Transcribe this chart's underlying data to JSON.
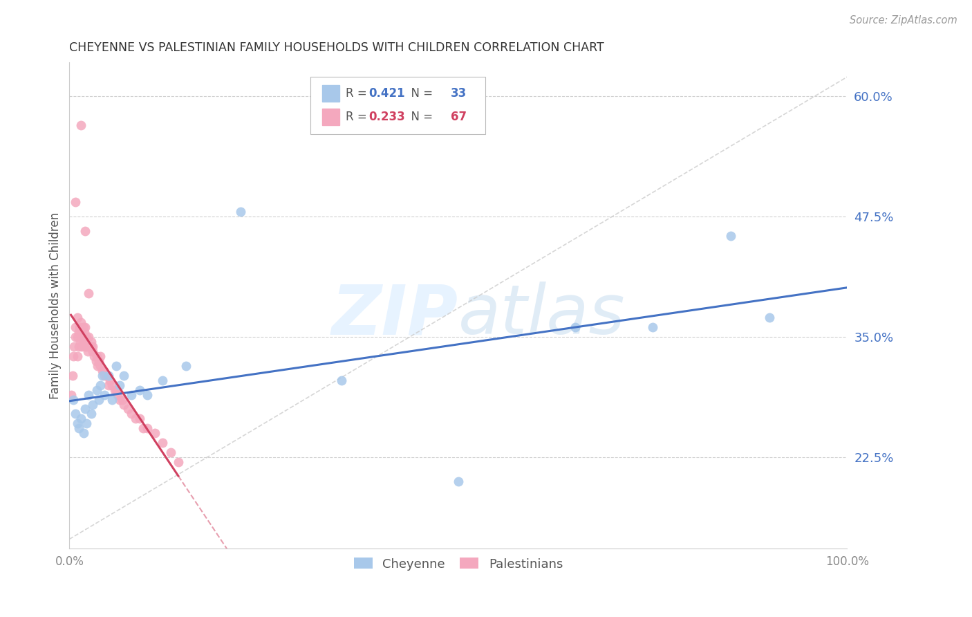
{
  "title": "CHEYENNE VS PALESTINIAN FAMILY HOUSEHOLDS WITH CHILDREN CORRELATION CHART",
  "source": "Source: ZipAtlas.com",
  "ylabel": "Family Households with Children",
  "xlabel": "",
  "legend_label1": "Cheyenne",
  "legend_label2": "Palestinians",
  "r1": 0.421,
  "n1": 33,
  "r2": 0.233,
  "n2": 67,
  "color1": "#a8c8ea",
  "color1_line": "#4472c4",
  "color2": "#f4a8be",
  "color2_line": "#d04060",
  "xlim": [
    0.0,
    1.0
  ],
  "ylim": [
    0.13,
    0.635
  ],
  "yticks": [
    0.225,
    0.35,
    0.475,
    0.6
  ],
  "ytick_labels": [
    "22.5%",
    "35.0%",
    "47.5%",
    "60.0%"
  ],
  "xticks": [
    0.0,
    0.2,
    0.4,
    0.6,
    0.8,
    1.0
  ],
  "xtick_labels": [
    "0.0%",
    "",
    "",
    "",
    "",
    "100.0%"
  ],
  "background_color": "#ffffff",
  "cheyenne_x": [
    0.005,
    0.008,
    0.01,
    0.012,
    0.015,
    0.018,
    0.02,
    0.022,
    0.025,
    0.028,
    0.03,
    0.035,
    0.038,
    0.04,
    0.042,
    0.045,
    0.05,
    0.055,
    0.06,
    0.065,
    0.07,
    0.08,
    0.09,
    0.1,
    0.12,
    0.15,
    0.22,
    0.35,
    0.5,
    0.65,
    0.75,
    0.85,
    0.9
  ],
  "cheyenne_y": [
    0.285,
    0.27,
    0.26,
    0.255,
    0.265,
    0.25,
    0.275,
    0.26,
    0.29,
    0.27,
    0.28,
    0.295,
    0.285,
    0.3,
    0.31,
    0.29,
    0.31,
    0.285,
    0.32,
    0.3,
    0.31,
    0.29,
    0.295,
    0.29,
    0.305,
    0.32,
    0.48,
    0.305,
    0.2,
    0.36,
    0.36,
    0.455,
    0.37
  ],
  "palestinians_x": [
    0.002,
    0.004,
    0.005,
    0.006,
    0.008,
    0.008,
    0.01,
    0.01,
    0.01,
    0.012,
    0.012,
    0.013,
    0.014,
    0.015,
    0.015,
    0.016,
    0.016,
    0.018,
    0.018,
    0.019,
    0.02,
    0.02,
    0.02,
    0.022,
    0.022,
    0.024,
    0.025,
    0.025,
    0.026,
    0.028,
    0.028,
    0.03,
    0.03,
    0.032,
    0.034,
    0.035,
    0.036,
    0.038,
    0.04,
    0.04,
    0.042,
    0.044,
    0.045,
    0.048,
    0.05,
    0.052,
    0.055,
    0.058,
    0.06,
    0.062,
    0.065,
    0.068,
    0.07,
    0.075,
    0.08,
    0.085,
    0.09,
    0.095,
    0.1,
    0.11,
    0.12,
    0.13,
    0.14,
    0.008,
    0.015,
    0.02,
    0.025
  ],
  "palestinians_y": [
    0.29,
    0.31,
    0.33,
    0.34,
    0.35,
    0.36,
    0.33,
    0.35,
    0.37,
    0.34,
    0.355,
    0.36,
    0.345,
    0.355,
    0.365,
    0.34,
    0.35,
    0.345,
    0.36,
    0.355,
    0.34,
    0.35,
    0.36,
    0.34,
    0.35,
    0.335,
    0.34,
    0.35,
    0.34,
    0.34,
    0.345,
    0.335,
    0.34,
    0.33,
    0.325,
    0.33,
    0.32,
    0.325,
    0.32,
    0.33,
    0.315,
    0.315,
    0.31,
    0.31,
    0.3,
    0.305,
    0.3,
    0.295,
    0.295,
    0.29,
    0.285,
    0.285,
    0.28,
    0.275,
    0.27,
    0.265,
    0.265,
    0.255,
    0.255,
    0.25,
    0.24,
    0.23,
    0.22,
    0.49,
    0.57,
    0.46,
    0.395
  ],
  "ref_line_x": [
    0.0,
    1.0
  ],
  "ref_line_y": [
    0.14,
    0.62
  ]
}
